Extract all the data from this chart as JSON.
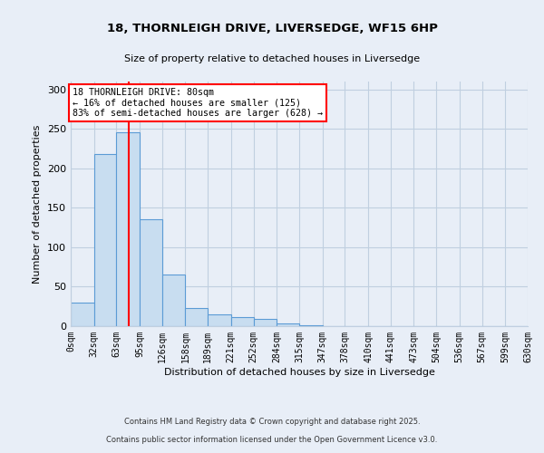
{
  "title": "18, THORNLEIGH DRIVE, LIVERSEDGE, WF15 6HP",
  "subtitle": "Size of property relative to detached houses in Liversedge",
  "xlabel": "Distribution of detached houses by size in Liversedge",
  "ylabel": "Number of detached properties",
  "bin_labels": [
    "0sqm",
    "32sqm",
    "63sqm",
    "95sqm",
    "126sqm",
    "158sqm",
    "189sqm",
    "221sqm",
    "252sqm",
    "284sqm",
    "315sqm",
    "347sqm",
    "378sqm",
    "410sqm",
    "441sqm",
    "473sqm",
    "504sqm",
    "536sqm",
    "567sqm",
    "599sqm",
    "630sqm"
  ],
  "bin_edges": [
    0,
    32,
    63,
    95,
    126,
    158,
    189,
    221,
    252,
    284,
    315,
    347,
    378,
    410,
    441,
    473,
    504,
    536,
    567,
    599,
    630
  ],
  "counts": [
    30,
    218,
    246,
    136,
    65,
    23,
    15,
    12,
    9,
    3,
    1,
    0,
    0,
    0,
    0,
    0,
    0,
    0,
    0,
    0
  ],
  "bar_color": "#c8ddf0",
  "bar_edge_color": "#5b9bd5",
  "vline_x": 80,
  "vline_color": "red",
  "annotation_line1": "18 THORNLEIGH DRIVE: 80sqm",
  "annotation_line2": "← 16% of detached houses are smaller (125)",
  "annotation_line3": "83% of semi-detached houses are larger (628) →",
  "annotation_box_color": "white",
  "annotation_box_edge_color": "red",
  "ylim": [
    0,
    310
  ],
  "yticks": [
    0,
    50,
    100,
    150,
    200,
    250,
    300
  ],
  "footer_line1": "Contains HM Land Registry data © Crown copyright and database right 2025.",
  "footer_line2": "Contains public sector information licensed under the Open Government Licence v3.0.",
  "background_color": "#e8eef7",
  "grid_color": "#c0cfe0"
}
